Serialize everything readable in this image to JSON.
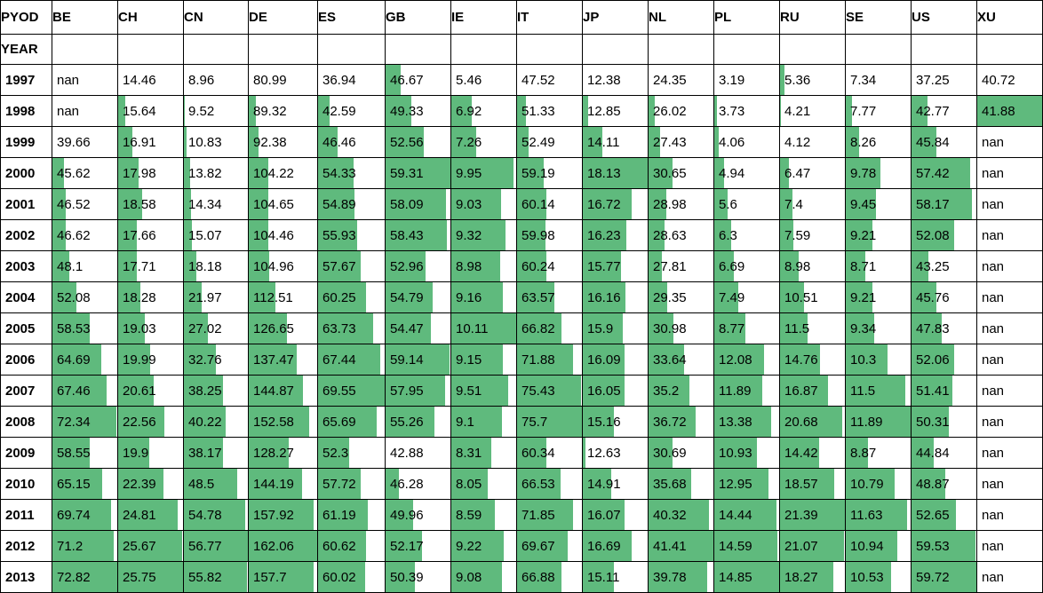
{
  "table": {
    "corner_label": "PYOD",
    "index_name": "YEAR",
    "columns": [
      "BE",
      "CH",
      "CN",
      "DE",
      "ES",
      "GB",
      "IE",
      "IT",
      "JP",
      "NL",
      "PL",
      "RU",
      "SE",
      "US",
      "XU"
    ],
    "years": [
      "1997",
      "1998",
      "1999",
      "2000",
      "2001",
      "2002",
      "2003",
      "2004",
      "2005",
      "2006",
      "2007",
      "2008",
      "2009",
      "2010",
      "2011",
      "2012",
      "2013"
    ],
    "cells": [
      [
        "nan",
        "14.46",
        "8.96",
        "80.99",
        "36.94",
        "46.67",
        "5.46",
        "47.52",
        "12.38",
        "24.35",
        "3.19",
        "5.36",
        "7.34",
        "37.25",
        "40.72"
      ],
      [
        "nan",
        "15.64",
        "9.52",
        "89.32",
        "42.59",
        "49.33",
        "6.92",
        "51.33",
        "12.85",
        "26.02",
        "3.73",
        "4.21",
        "7.77",
        "42.77",
        "41.88"
      ],
      [
        "39.66",
        "16.91",
        "10.83",
        "92.38",
        "46.46",
        "52.56",
        "7.26",
        "52.49",
        "14.11",
        "27.43",
        "4.06",
        "4.12",
        "8.26",
        "45.84",
        "nan"
      ],
      [
        "45.62",
        "17.98",
        "13.82",
        "104.22",
        "54.33",
        "59.31",
        "9.95",
        "59.19",
        "18.13",
        "30.65",
        "4.94",
        "6.47",
        "9.78",
        "57.42",
        "nan"
      ],
      [
        "46.52",
        "18.58",
        "14.34",
        "104.65",
        "54.89",
        "58.09",
        "9.03",
        "60.14",
        "16.72",
        "28.98",
        "5.6",
        "7.4",
        "9.45",
        "58.17",
        "nan"
      ],
      [
        "46.62",
        "17.66",
        "15.07",
        "104.46",
        "55.93",
        "58.43",
        "9.32",
        "59.98",
        "16.23",
        "28.63",
        "6.3",
        "7.59",
        "9.21",
        "52.08",
        "nan"
      ],
      [
        "48.1",
        "17.71",
        "18.18",
        "104.96",
        "57.67",
        "52.96",
        "8.98",
        "60.24",
        "15.77",
        "27.81",
        "6.69",
        "8.98",
        "8.71",
        "43.25",
        "nan"
      ],
      [
        "52.08",
        "18.28",
        "21.97",
        "112.51",
        "60.25",
        "54.79",
        "9.16",
        "63.57",
        "16.16",
        "29.35",
        "7.49",
        "10.51",
        "9.21",
        "45.76",
        "nan"
      ],
      [
        "58.53",
        "19.03",
        "27.02",
        "126.65",
        "63.73",
        "54.47",
        "10.11",
        "66.82",
        "15.9",
        "30.98",
        "8.77",
        "11.5",
        "9.34",
        "47.83",
        "nan"
      ],
      [
        "64.69",
        "19.99",
        "32.76",
        "137.47",
        "67.44",
        "59.14",
        "9.15",
        "71.88",
        "16.09",
        "33.64",
        "12.08",
        "14.76",
        "10.3",
        "52.06",
        "nan"
      ],
      [
        "67.46",
        "20.61",
        "38.25",
        "144.87",
        "69.55",
        "57.95",
        "9.51",
        "75.43",
        "16.05",
        "35.2",
        "11.89",
        "16.87",
        "11.5",
        "51.41",
        "nan"
      ],
      [
        "72.34",
        "22.56",
        "40.22",
        "152.58",
        "65.69",
        "55.26",
        "9.1",
        "75.7",
        "15.16",
        "36.72",
        "13.38",
        "20.68",
        "11.89",
        "50.31",
        "nan"
      ],
      [
        "58.55",
        "19.9",
        "38.17",
        "128.27",
        "52.3",
        "42.88",
        "8.31",
        "60.34",
        "12.63",
        "30.69",
        "10.93",
        "14.42",
        "8.87",
        "44.84",
        "nan"
      ],
      [
        "65.15",
        "22.39",
        "48.5",
        "144.19",
        "57.72",
        "46.28",
        "8.05",
        "66.53",
        "14.91",
        "35.68",
        "12.95",
        "18.57",
        "10.79",
        "48.87",
        "nan"
      ],
      [
        "69.74",
        "24.81",
        "54.78",
        "157.92",
        "61.19",
        "49.96",
        "8.59",
        "71.85",
        "16.07",
        "40.32",
        "14.44",
        "21.39",
        "11.63",
        "52.65",
        "nan"
      ],
      [
        "71.2",
        "25.67",
        "56.77",
        "162.06",
        "60.62",
        "52.17",
        "9.22",
        "69.67",
        "16.69",
        "41.41",
        "14.59",
        "21.07",
        "10.94",
        "59.53",
        "nan"
      ],
      [
        "72.82",
        "25.75",
        "55.82",
        "157.7",
        "60.02",
        "50.39",
        "9.08",
        "66.88",
        "15.11",
        "39.78",
        "14.85",
        "18.27",
        "10.53",
        "59.72",
        "nan"
      ]
    ]
  },
  "chart_data": {
    "type": "table",
    "bar_color": "#5fba7d",
    "background_color": "#ffffff",
    "border_color": "#000000",
    "missing_value": "nan"
  }
}
